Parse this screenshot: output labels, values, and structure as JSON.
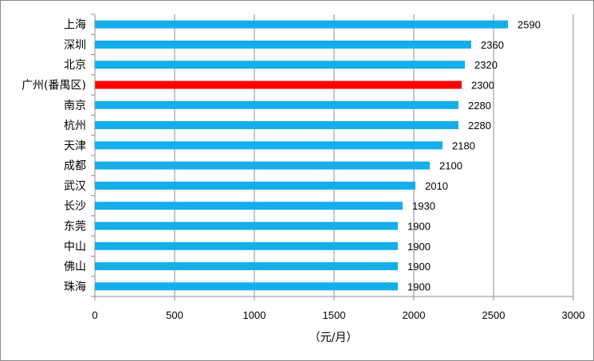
{
  "chart_data": {
    "type": "bar",
    "orientation": "horizontal",
    "categories": [
      "上海",
      "深圳",
      "北京",
      "广州(番禺区)",
      "南京",
      "杭州",
      "天津",
      "成都",
      "武汉",
      "长沙",
      "东莞",
      "中山",
      "佛山",
      "珠海"
    ],
    "values": [
      2590,
      2360,
      2320,
      2300,
      2280,
      2280,
      2180,
      2100,
      2010,
      1930,
      1900,
      1900,
      1900,
      1900
    ],
    "highlight_index": 3,
    "bar_color": "#14AEEA",
    "highlight_color": "#FF0000",
    "xlabel": "（元/月）",
    "ylabel": "",
    "title": "",
    "xlim": [
      0,
      3000
    ],
    "xticks": [
      0,
      500,
      1000,
      1500,
      2000,
      2500,
      3000
    ],
    "grid": "vertical",
    "data_labels": true
  }
}
